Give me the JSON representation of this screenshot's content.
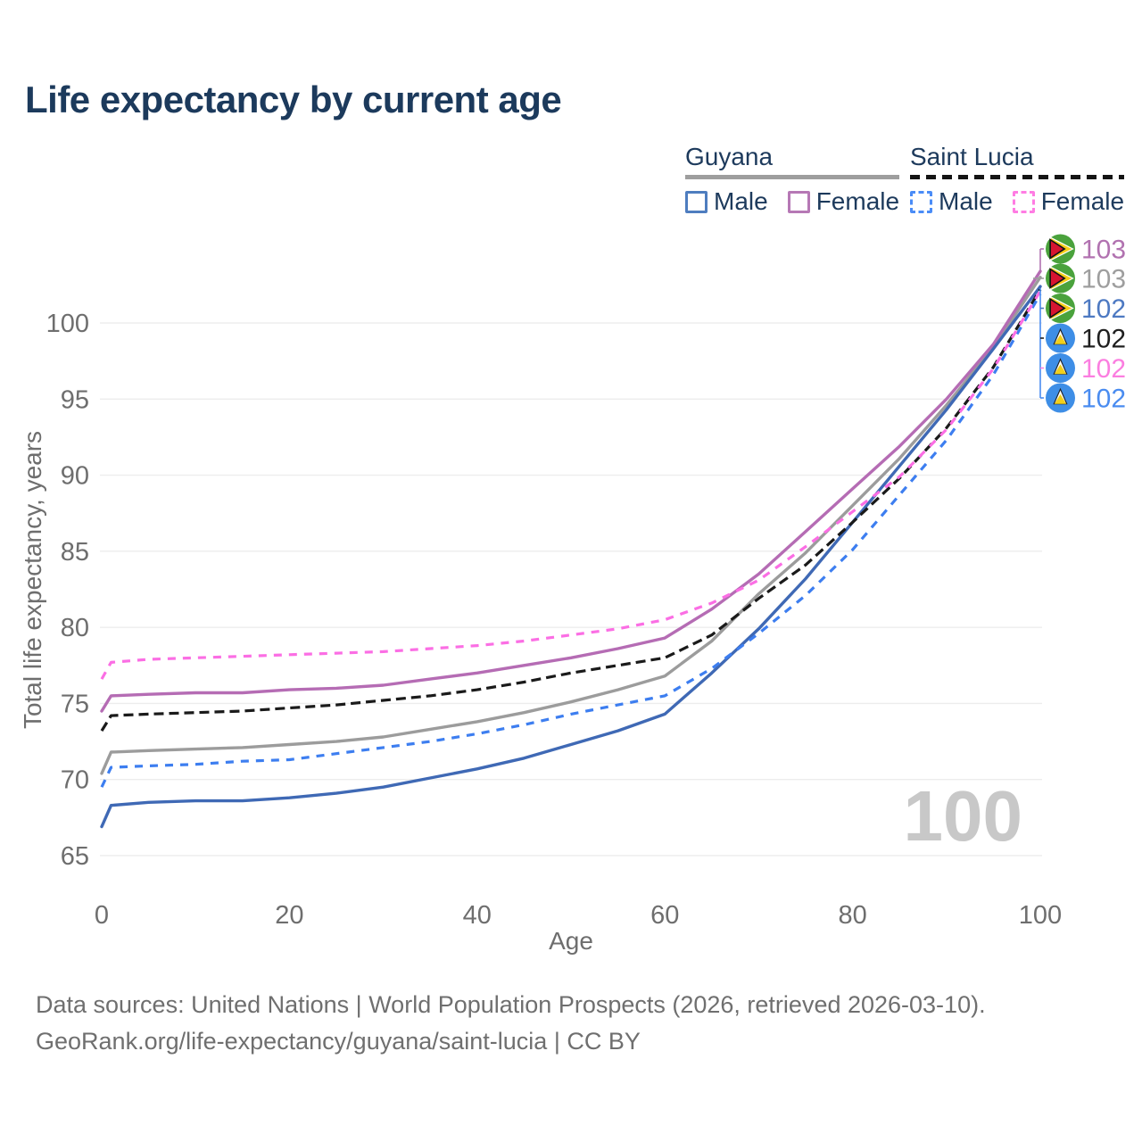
{
  "title": "Life expectancy by current age",
  "legend": {
    "guyana": {
      "title": "Guyana",
      "male": "Male",
      "female": "Female"
    },
    "saint_lucia": {
      "title": "Saint Lucia",
      "male": "Male",
      "female": "Female"
    }
  },
  "chart_data": {
    "type": "line",
    "title": "Life expectancy by current age",
    "xlabel": "Age",
    "ylabel": "Total life expectancy, years",
    "xlim": [
      0,
      100
    ],
    "ylim": [
      65,
      103.5
    ],
    "x_ticks": [
      0,
      20,
      40,
      60,
      80,
      100
    ],
    "y_ticks": [
      65,
      70,
      75,
      80,
      85,
      90,
      95,
      100
    ],
    "grid": "horizontal-only",
    "legend_position": "top-right",
    "age_watermark": "100",
    "x": [
      0,
      1,
      5,
      10,
      15,
      20,
      25,
      30,
      35,
      40,
      45,
      50,
      55,
      60,
      65,
      70,
      75,
      80,
      85,
      90,
      95,
      100
    ],
    "series": [
      {
        "id": "guyana-total",
        "name": "Guyana (both sexes)",
        "color": "#9c9c9c",
        "style": "solid",
        "values": [
          70.4,
          71.8,
          71.9,
          72.0,
          72.1,
          72.3,
          72.5,
          72.8,
          73.3,
          73.8,
          74.4,
          75.1,
          75.9,
          76.8,
          79.1,
          82.2,
          84.9,
          88.0,
          91.1,
          94.6,
          98.4,
          103.0
        ],
        "end_value": "103"
      },
      {
        "id": "guyana-female",
        "name": "Guyana Female",
        "color": "#b56cb4",
        "style": "solid",
        "values": [
          74.5,
          75.5,
          75.6,
          75.7,
          75.7,
          75.9,
          76.0,
          76.2,
          76.6,
          77.0,
          77.5,
          78.0,
          78.6,
          79.3,
          81.2,
          83.5,
          86.3,
          89.1,
          91.9,
          95.0,
          98.6,
          103.4
        ],
        "end_value": "103"
      },
      {
        "id": "guyana-male",
        "name": "Guyana Male",
        "color": "#3f69b5",
        "style": "solid",
        "values": [
          66.9,
          68.3,
          68.5,
          68.6,
          68.6,
          68.8,
          69.1,
          69.5,
          70.1,
          70.7,
          71.4,
          72.3,
          73.2,
          74.3,
          77.0,
          79.9,
          83.2,
          86.9,
          90.6,
          94.3,
          98.3,
          102.4
        ],
        "end_value": "102"
      },
      {
        "id": "saint-lucia-total",
        "name": "Saint Lucia (both sexes)",
        "color": "#1a1a1a",
        "style": "dashed",
        "values": [
          73.2,
          74.2,
          74.3,
          74.4,
          74.5,
          74.7,
          74.9,
          75.2,
          75.5,
          75.9,
          76.4,
          77.0,
          77.5,
          78.0,
          79.5,
          81.9,
          84.1,
          86.9,
          89.8,
          93.1,
          97.1,
          102.2
        ],
        "end_value": "102"
      },
      {
        "id": "saint-lucia-male",
        "name": "Saint Lucia Male",
        "color": "#3d7ef0",
        "style": "dashed",
        "values": [
          69.5,
          70.8,
          70.9,
          71.0,
          71.2,
          71.3,
          71.7,
          72.1,
          72.5,
          73.0,
          73.6,
          74.3,
          74.9,
          75.5,
          77.3,
          79.6,
          82.1,
          85.1,
          88.7,
          92.3,
          96.6,
          101.9
        ],
        "end_value": "102"
      },
      {
        "id": "saint-lucia-female",
        "name": "Saint Lucia Female",
        "color": "#fb6ee4",
        "style": "dashed",
        "values": [
          76.6,
          77.7,
          77.9,
          78.0,
          78.1,
          78.2,
          78.3,
          78.4,
          78.6,
          78.8,
          79.1,
          79.5,
          79.9,
          80.5,
          81.6,
          83.1,
          85.3,
          87.6,
          89.9,
          93.0,
          97.0,
          102.1
        ],
        "end_value": "102"
      }
    ],
    "end_labels": [
      {
        "flag": "guyana",
        "value": "103",
        "color": "#b172b0",
        "series": "guyana-female"
      },
      {
        "flag": "guyana",
        "value": "103",
        "color": "#9e9e9e",
        "series": "guyana-total"
      },
      {
        "flag": "guyana",
        "value": "102",
        "color": "#4d79c2",
        "series": "guyana-male"
      },
      {
        "flag": "saint-lucia",
        "value": "102",
        "color": "#1f1f1f",
        "series": "saint-lucia-total"
      },
      {
        "flag": "saint-lucia",
        "value": "102",
        "color": "#fb7ee0",
        "series": "saint-lucia-female"
      },
      {
        "flag": "saint-lucia",
        "value": "102",
        "color": "#4a8cf0",
        "series": "saint-lucia-male"
      }
    ]
  },
  "footer": {
    "line1": "Data sources: United Nations | World Population Prospects (2026, retrieved 2026-03-10).",
    "line2": "GeoRank.org/life-expectancy/guyana/saint-lucia | CC BY"
  }
}
